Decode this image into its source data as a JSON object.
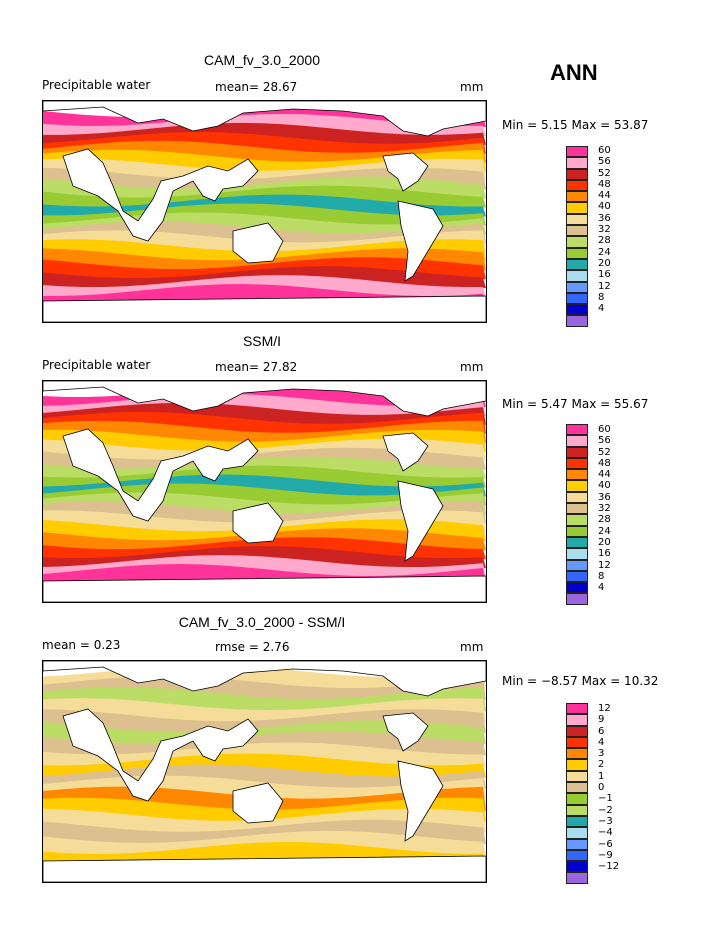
{
  "season": "ANN",
  "colors": {
    "ocean_bands": [
      "#0000cc",
      "#3366ff",
      "#6699ff",
      "#aaddee",
      "#22aaaa",
      "#99cc33",
      "#bbdd66",
      "#ddc090",
      "#f5dd99",
      "#ffcc00",
      "#ff8800",
      "#ff3300",
      "#cc2222",
      "#ffaacc",
      "#ff3399",
      "#9966dd"
    ]
  },
  "panels": [
    {
      "title": "CAM_fv_3.0_2000",
      "left_label": "Precipitable water",
      "center_label": "mean=  28.67",
      "units": "mm",
      "stats": "Min =   5.15 Max =  53.87",
      "legend": {
        "labels": [
          "60",
          "56",
          "52",
          "48",
          "44",
          "40",
          "36",
          "32",
          "28",
          "24",
          "20",
          "16",
          "12",
          "8",
          "4"
        ],
        "colors": [
          "#ff3399",
          "#ffaacc",
          "#cc2222",
          "#ff3300",
          "#ff8800",
          "#ffcc00",
          "#f5dd99",
          "#ddc090",
          "#bbdd66",
          "#99cc33",
          "#22aaaa",
          "#aaddee",
          "#6699ff",
          "#3366ff",
          "#0000cc",
          "#9966dd"
        ]
      }
    },
    {
      "title": "SSM/I",
      "left_label": "Precipitable water",
      "center_label": "mean=  27.82",
      "units": "mm",
      "stats": "Min =   5.47 Max =  55.67",
      "legend": {
        "labels": [
          "60",
          "56",
          "52",
          "48",
          "44",
          "40",
          "36",
          "32",
          "28",
          "24",
          "20",
          "16",
          "12",
          "8",
          "4"
        ],
        "colors": [
          "#ff3399",
          "#ffaacc",
          "#cc2222",
          "#ff3300",
          "#ff8800",
          "#ffcc00",
          "#f5dd99",
          "#ddc090",
          "#bbdd66",
          "#99cc33",
          "#22aaaa",
          "#aaddee",
          "#6699ff",
          "#3366ff",
          "#0000cc",
          "#9966dd"
        ]
      }
    },
    {
      "title": "CAM_fv_3.0_2000 - SSM/I",
      "left_label": "mean =   0.23",
      "center_label": "rmse =   2.76",
      "units": "mm",
      "stats": "Min =  −8.57 Max =  10.32",
      "legend": {
        "labels": [
          "12",
          "9",
          "6",
          "4",
          "3",
          "2",
          "1",
          "0",
          "−1",
          "−2",
          "−3",
          "−4",
          "−6",
          "−9",
          "−12"
        ],
        "colors": [
          "#ff3399",
          "#ffaacc",
          "#cc2222",
          "#ff3300",
          "#ff8800",
          "#ffcc00",
          "#f5dd99",
          "#ddc090",
          "#99cc33",
          "#bbdd66",
          "#22aaaa",
          "#aaddee",
          "#6699ff",
          "#3366ff",
          "#0000cc",
          "#9966dd"
        ]
      }
    }
  ]
}
